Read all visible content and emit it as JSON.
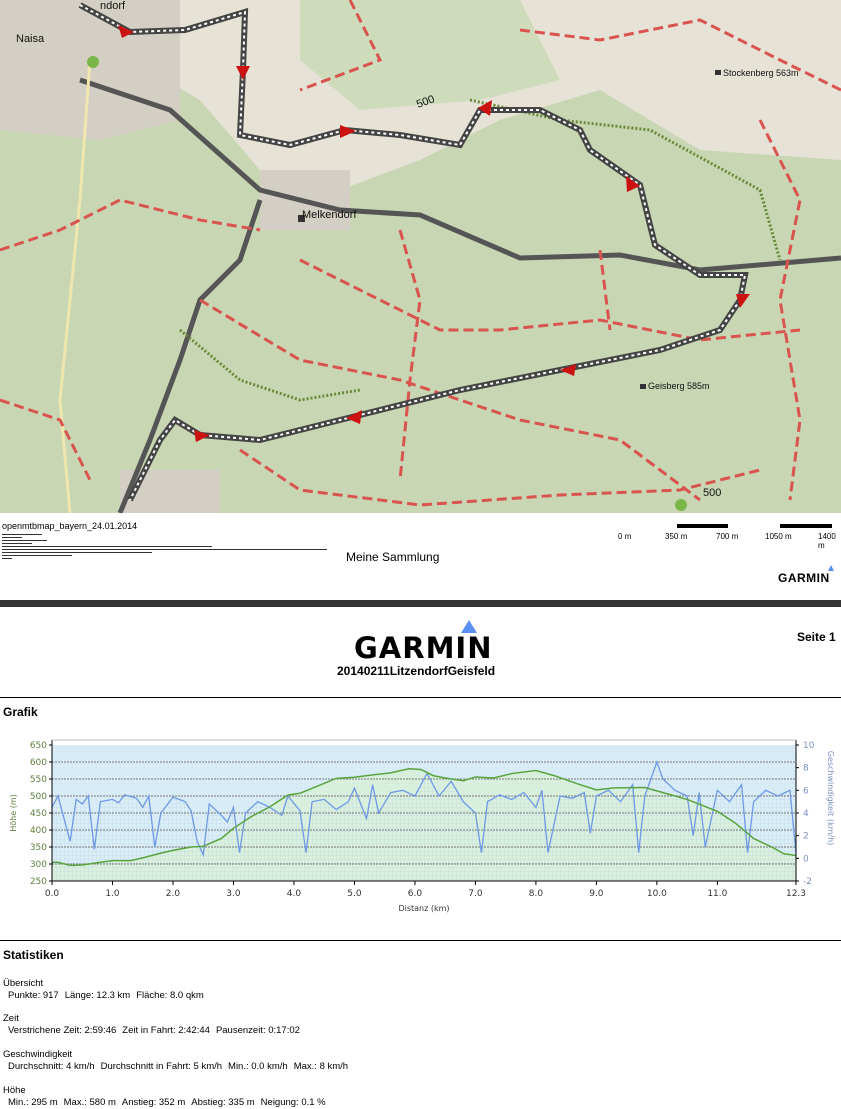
{
  "map": {
    "places": [
      "Naisa",
      "ndorf",
      "Melkendorf",
      "Stockenberg 563m",
      "Geisberg 585m"
    ],
    "contour_labels": [
      "500",
      "500"
    ],
    "icons": [
      "info-icon",
      "direction-arrow-icon",
      "peak-icon"
    ],
    "track_color": "#444444",
    "arrow_color": "#cc1111"
  },
  "map_footer": {
    "map_name": "openmtbmap_bayern_24.01.2014",
    "collection": "Meine Sammlung",
    "scale_labels": [
      "0 m",
      "350 m",
      "700 m",
      "1050 m",
      "1400 m"
    ],
    "logo": "GARMIN"
  },
  "header": {
    "logo": "GARMIN",
    "title": "20140211LitzendorfGeisfeld",
    "page": "Seite 1"
  },
  "graph_section": {
    "title": "Grafik"
  },
  "chart_data": {
    "type": "line",
    "xlabel": "Distanz   (km)",
    "ylabel_left": "Höhe (m)",
    "ylabel_right": "Geschwindigkeit (km/h)",
    "x_ticks": [
      "0.0",
      "1.0",
      "2.0",
      "3.0",
      "4.0",
      "5.0",
      "6.0",
      "7.0",
      "8.0",
      "9.0",
      "10.0",
      "11.0",
      "12.3"
    ],
    "y_left_ticks": [
      "650",
      "600",
      "550",
      "500",
      "450",
      "400",
      "350",
      "300",
      "250"
    ],
    "y_right_ticks": [
      "10",
      "8",
      "6",
      "4",
      "2",
      "0",
      "-2"
    ],
    "xlim": [
      0,
      12.3
    ],
    "ylim_left": [
      250,
      650
    ],
    "ylim_right": [
      -2,
      10
    ],
    "grid": true,
    "colors": {
      "elevation": "#5aa33f",
      "speed": "#6f98e6",
      "background": "#d9edf7"
    },
    "series": [
      {
        "axis": "left",
        "points": [
          [
            0,
            305
          ],
          [
            0.1,
            305
          ],
          [
            0.3,
            296
          ],
          [
            0.5,
            297
          ],
          [
            0.8,
            305
          ],
          [
            1.0,
            310
          ],
          [
            1.3,
            310
          ],
          [
            1.5,
            318
          ],
          [
            1.8,
            332
          ],
          [
            2.0,
            340
          ],
          [
            2.3,
            350
          ],
          [
            2.5,
            352
          ],
          [
            2.8,
            375
          ],
          [
            3.0,
            405
          ],
          [
            3.3,
            440
          ],
          [
            3.6,
            468
          ],
          [
            3.9,
            503
          ],
          [
            4.1,
            508
          ],
          [
            4.4,
            530
          ],
          [
            4.7,
            552
          ],
          [
            5.0,
            555
          ],
          [
            5.3,
            562
          ],
          [
            5.6,
            568
          ],
          [
            5.9,
            580
          ],
          [
            6.1,
            578
          ],
          [
            6.3,
            560
          ],
          [
            6.5,
            553
          ],
          [
            6.8,
            545
          ],
          [
            7.0,
            556
          ],
          [
            7.3,
            553
          ],
          [
            7.6,
            566
          ],
          [
            8.0,
            575
          ],
          [
            8.3,
            560
          ],
          [
            8.7,
            535
          ],
          [
            9.0,
            518
          ],
          [
            9.3,
            524
          ],
          [
            9.8,
            525
          ],
          [
            10.0,
            515
          ],
          [
            10.5,
            490
          ],
          [
            11.0,
            455
          ],
          [
            11.3,
            420
          ],
          [
            11.6,
            375
          ],
          [
            11.9,
            350
          ],
          [
            12.1,
            330
          ],
          [
            12.3,
            325
          ]
        ]
      },
      {
        "axis": "right",
        "points": [
          [
            0,
            4.5
          ],
          [
            0.1,
            5.5
          ],
          [
            0.3,
            1.5
          ],
          [
            0.4,
            5.2
          ],
          [
            0.5,
            4.8
          ],
          [
            0.6,
            5.5
          ],
          [
            0.7,
            0.8
          ],
          [
            0.8,
            5.0
          ],
          [
            1.0,
            5.2
          ],
          [
            1.1,
            4.9
          ],
          [
            1.2,
            5.6
          ],
          [
            1.4,
            5.3
          ],
          [
            1.5,
            4.5
          ],
          [
            1.6,
            5.5
          ],
          [
            1.7,
            1.0
          ],
          [
            1.8,
            4.0
          ],
          [
            2.0,
            5.4
          ],
          [
            2.2,
            5.0
          ],
          [
            2.3,
            4.2
          ],
          [
            2.4,
            1.5
          ],
          [
            2.5,
            0.3
          ],
          [
            2.6,
            4.8
          ],
          [
            2.8,
            3.8
          ],
          [
            2.9,
            3.2
          ],
          [
            3.0,
            4.5
          ],
          [
            3.1,
            0.5
          ],
          [
            3.2,
            4.0
          ],
          [
            3.4,
            5.0
          ],
          [
            3.6,
            4.5
          ],
          [
            3.8,
            3.8
          ],
          [
            3.9,
            5.5
          ],
          [
            4.1,
            4.2
          ],
          [
            4.2,
            0.5
          ],
          [
            4.3,
            5.0
          ],
          [
            4.5,
            5.2
          ],
          [
            4.7,
            4.3
          ],
          [
            4.9,
            5.0
          ],
          [
            5.0,
            6.2
          ],
          [
            5.2,
            3.5
          ],
          [
            5.3,
            6.5
          ],
          [
            5.4,
            4.0
          ],
          [
            5.6,
            5.8
          ],
          [
            5.8,
            6.0
          ],
          [
            6.0,
            5.5
          ],
          [
            6.2,
            7.5
          ],
          [
            6.4,
            5.5
          ],
          [
            6.6,
            6.8
          ],
          [
            6.8,
            5.0
          ],
          [
            7.0,
            4.0
          ],
          [
            7.1,
            0.5
          ],
          [
            7.2,
            5.0
          ],
          [
            7.4,
            5.6
          ],
          [
            7.6,
            5.2
          ],
          [
            7.8,
            5.8
          ],
          [
            8.0,
            4.5
          ],
          [
            8.1,
            6.0
          ],
          [
            8.2,
            0.5
          ],
          [
            8.4,
            5.5
          ],
          [
            8.6,
            5.3
          ],
          [
            8.8,
            5.8
          ],
          [
            8.9,
            2.2
          ],
          [
            9.0,
            5.5
          ],
          [
            9.2,
            6.0
          ],
          [
            9.4,
            5.0
          ],
          [
            9.6,
            6.5
          ],
          [
            9.7,
            0.5
          ],
          [
            9.8,
            5.5
          ],
          [
            10.0,
            8.5
          ],
          [
            10.1,
            7.0
          ],
          [
            10.3,
            6.0
          ],
          [
            10.5,
            5.5
          ],
          [
            10.6,
            2.0
          ],
          [
            10.7,
            5.8
          ],
          [
            10.8,
            1.0
          ],
          [
            11.0,
            6.0
          ],
          [
            11.2,
            5.0
          ],
          [
            11.4,
            6.5
          ],
          [
            11.5,
            0.5
          ],
          [
            11.6,
            5.0
          ],
          [
            11.8,
            6.0
          ],
          [
            12.0,
            5.5
          ],
          [
            12.2,
            6.0
          ],
          [
            12.3,
            0.5
          ]
        ]
      }
    ]
  },
  "stats": {
    "title": "Statistiken",
    "groups": [
      {
        "name": "Übersicht",
        "items": [
          "Punkte: 917",
          "Länge: 12.3 km",
          "Fläche: 8.0 qkm"
        ]
      },
      {
        "name": "Zeit",
        "items": [
          "Verstrichene Zeit: 2:59:46",
          "Zeit in Fahrt: 2:42:44",
          "Pausenzeit: 0:17:02"
        ]
      },
      {
        "name": "Geschwindigkeit",
        "items": [
          "Durchschnitt: 4 km/h",
          "Durchschnitt in Fahrt: 5 km/h",
          "Min.: 0.0 km/h",
          "Max.: 8 km/h"
        ]
      },
      {
        "name": "Höhe",
        "items": [
          "Min.: 295 m",
          "Max.: 580 m",
          "Anstieg: 352 m",
          "Abstieg: 335 m",
          "Neigung: 0.1 %"
        ]
      }
    ]
  }
}
